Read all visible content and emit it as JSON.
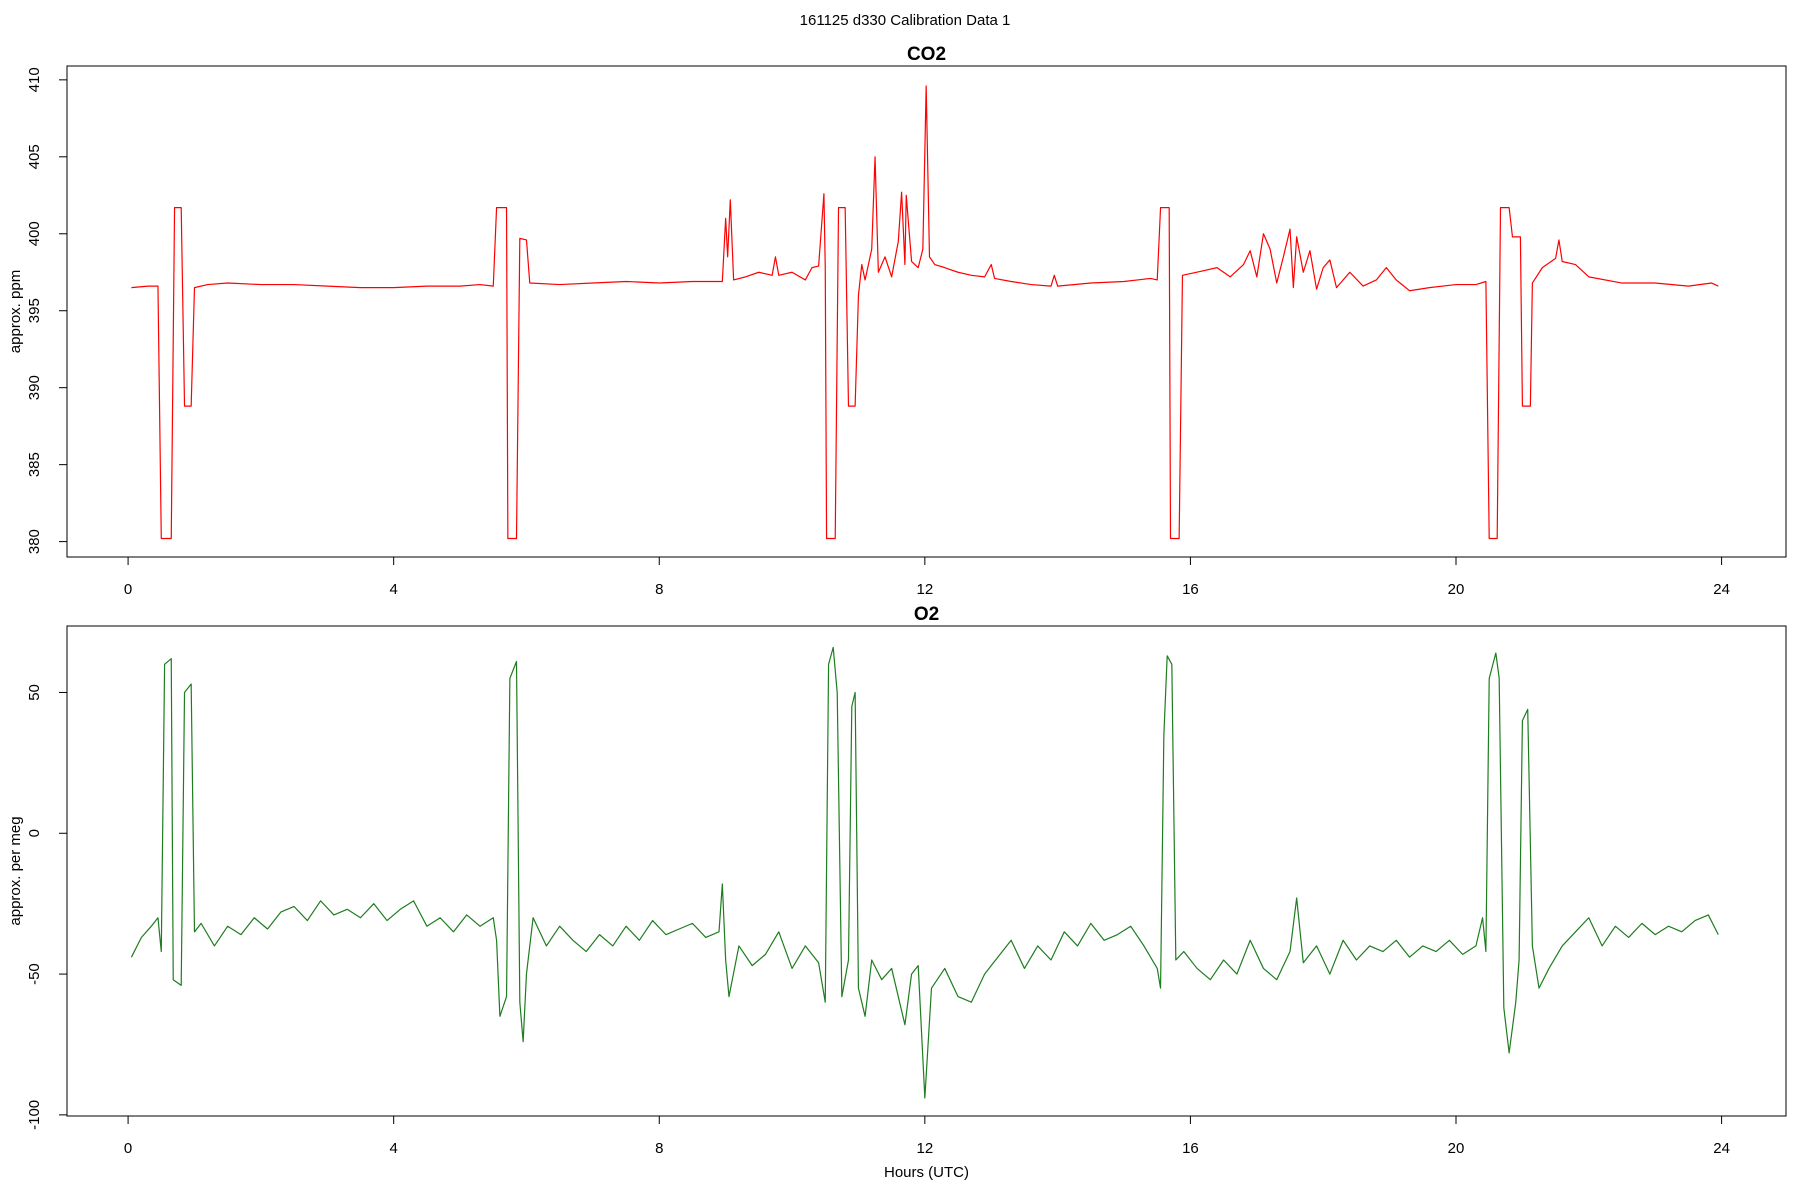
{
  "title": "161125   d330   Calibration Data 1",
  "chart_data": [
    {
      "type": "line",
      "title": "CO2",
      "ylabel": "approx. ppm",
      "x": [
        0.05,
        0.3,
        0.45,
        0.5,
        0.65,
        0.7,
        0.8,
        0.85,
        0.95,
        1.0,
        1.2,
        1.5,
        2,
        2.5,
        3,
        3.5,
        4,
        4.5,
        5,
        5.3,
        5.5,
        5.55,
        5.7,
        5.72,
        5.85,
        5.9,
        6.0,
        6.05,
        6.5,
        7,
        7.5,
        8,
        8.5,
        8.95,
        9.0,
        9.03,
        9.07,
        9.12,
        9.3,
        9.5,
        9.7,
        9.75,
        9.8,
        10,
        10.2,
        10.3,
        10.4,
        10.48,
        10.5,
        10.52,
        10.65,
        10.7,
        10.8,
        10.85,
        10.95,
        11.0,
        11.05,
        11.1,
        11.2,
        11.25,
        11.3,
        11.4,
        11.5,
        11.6,
        11.65,
        11.7,
        11.72,
        11.8,
        11.9,
        11.97,
        12.02,
        12.07,
        12.15,
        12.3,
        12.5,
        12.7,
        12.9,
        13.0,
        13.05,
        13.3,
        13.6,
        13.9,
        13.95,
        14.0,
        14.5,
        15,
        15.4,
        15.5,
        15.55,
        15.68,
        15.7,
        15.83,
        15.88,
        16.2,
        16.4,
        16.6,
        16.8,
        16.9,
        17.0,
        17.1,
        17.2,
        17.3,
        17.4,
        17.5,
        17.55,
        17.6,
        17.7,
        17.8,
        17.9,
        18.0,
        18.1,
        18.2,
        18.4,
        18.6,
        18.8,
        18.95,
        19.1,
        19.3,
        19.6,
        20,
        20.3,
        20.45,
        20.5,
        20.62,
        20.67,
        20.8,
        20.85,
        20.97,
        21.0,
        21.12,
        21.15,
        21.3,
        21.5,
        21.55,
        21.6,
        21.8,
        22,
        22.5,
        23,
        23.5,
        23.85,
        23.95
      ],
      "series": [
        {
          "color": "#ff0000",
          "values": [
            396.5,
            396.6,
            396.6,
            380.2,
            380.2,
            401.7,
            401.7,
            388.8,
            388.8,
            396.5,
            396.7,
            396.8,
            396.7,
            396.7,
            396.6,
            396.5,
            396.5,
            396.6,
            396.6,
            396.7,
            396.6,
            401.7,
            401.7,
            380.2,
            380.2,
            399.7,
            399.6,
            396.8,
            396.7,
            396.8,
            396.9,
            396.8,
            396.9,
            396.9,
            401.0,
            398.5,
            402.2,
            397.0,
            397.2,
            397.5,
            397.3,
            398.5,
            397.3,
            397.5,
            397.0,
            397.8,
            397.9,
            402.6,
            397.8,
            380.2,
            380.2,
            401.7,
            401.7,
            388.8,
            388.8,
            396.0,
            398.0,
            397.0,
            399.0,
            405.0,
            397.5,
            398.5,
            397.2,
            399.5,
            402.7,
            398.0,
            402.5,
            398.2,
            397.8,
            399.0,
            409.6,
            398.5,
            398.0,
            397.8,
            397.5,
            397.3,
            397.2,
            398.0,
            397.1,
            396.9,
            396.7,
            396.6,
            397.3,
            396.6,
            396.8,
            396.9,
            397.1,
            397.0,
            401.7,
            401.7,
            380.2,
            380.2,
            397.3,
            397.6,
            397.8,
            397.2,
            398.0,
            398.9,
            397.2,
            400.0,
            399.0,
            396.8,
            398.5,
            400.3,
            396.5,
            399.8,
            397.5,
            398.9,
            396.4,
            397.8,
            398.3,
            396.5,
            397.5,
            396.6,
            397.0,
            397.8,
            397.0,
            396.3,
            396.5,
            396.7,
            396.7,
            396.9,
            380.2,
            380.2,
            401.7,
            401.7,
            399.8,
            399.8,
            388.8,
            388.8,
            396.8,
            397.8,
            398.4,
            399.6,
            398.2,
            398.0,
            397.2,
            396.8,
            396.8,
            396.6,
            396.8,
            396.6
          ]
        }
      ],
      "xlim": [
        -0.92,
        24.97
      ],
      "ylim": [
        379,
        410.9
      ],
      "xticks": [
        0,
        4,
        8,
        12,
        16,
        20,
        24
      ],
      "yticks": [
        380,
        385,
        390,
        395,
        400,
        405,
        410
      ]
    },
    {
      "type": "line",
      "title": "O2",
      "xlabel": "Hours (UTC)",
      "ylabel": "approx. per meg",
      "x": [
        0.05,
        0.2,
        0.35,
        0.45,
        0.5,
        0.55,
        0.65,
        0.68,
        0.8,
        0.85,
        0.95,
        1.0,
        1.1,
        1.3,
        1.5,
        1.7,
        1.9,
        2.1,
        2.3,
        2.5,
        2.7,
        2.9,
        3.1,
        3.3,
        3.5,
        3.7,
        3.9,
        4.1,
        4.3,
        4.5,
        4.7,
        4.9,
        5.1,
        5.3,
        5.5,
        5.55,
        5.6,
        5.7,
        5.75,
        5.85,
        5.9,
        5.95,
        6.0,
        6.1,
        6.3,
        6.5,
        6.7,
        6.9,
        7.1,
        7.3,
        7.5,
        7.7,
        7.9,
        8.1,
        8.3,
        8.5,
        8.7,
        8.9,
        8.95,
        9.0,
        9.05,
        9.2,
        9.4,
        9.6,
        9.8,
        10.0,
        10.2,
        10.4,
        10.5,
        10.55,
        10.62,
        10.68,
        10.75,
        10.85,
        10.9,
        10.95,
        11.0,
        11.1,
        11.2,
        11.35,
        11.5,
        11.7,
        11.8,
        11.9,
        12.0,
        12.1,
        12.3,
        12.5,
        12.7,
        12.9,
        13.1,
        13.3,
        13.5,
        13.7,
        13.9,
        14.1,
        14.3,
        14.5,
        14.7,
        14.9,
        15.1,
        15.3,
        15.5,
        15.55,
        15.6,
        15.65,
        15.72,
        15.78,
        15.9,
        16.1,
        16.3,
        16.5,
        16.7,
        16.9,
        17.1,
        17.3,
        17.5,
        17.6,
        17.7,
        17.9,
        18.1,
        18.3,
        18.5,
        18.7,
        18.9,
        19.1,
        19.3,
        19.5,
        19.7,
        19.9,
        20.1,
        20.3,
        20.4,
        20.45,
        20.5,
        20.6,
        20.65,
        20.72,
        20.8,
        20.9,
        20.95,
        21.0,
        21.08,
        21.15,
        21.25,
        21.4,
        21.6,
        21.8,
        22.0,
        22.2,
        22.4,
        22.6,
        22.8,
        23.0,
        23.2,
        23.4,
        23.6,
        23.8,
        23.95
      ],
      "series": [
        {
          "color": "#1e7d1e",
          "values": [
            -44,
            -37,
            -33,
            -30,
            -42,
            60,
            62,
            -52,
            -54,
            50,
            53,
            -35,
            -32,
            -40,
            -33,
            -36,
            -30,
            -34,
            -28,
            -26,
            -31,
            -24,
            -29,
            -27,
            -30,
            -25,
            -31,
            -27,
            -24,
            -33,
            -30,
            -35,
            -29,
            -33,
            -30,
            -38,
            -65,
            -58,
            55,
            61,
            -60,
            -74,
            -50,
            -30,
            -40,
            -33,
            -38,
            -42,
            -36,
            -40,
            -33,
            -38,
            -31,
            -36,
            -34,
            -32,
            -37,
            -35,
            -18,
            -45,
            -58,
            -40,
            -47,
            -43,
            -35,
            -48,
            -40,
            -46,
            -60,
            60,
            66,
            50,
            -58,
            -45,
            45,
            50,
            -55,
            -65,
            -45,
            -52,
            -48,
            -68,
            -50,
            -47,
            -94,
            -55,
            -48,
            -58,
            -60,
            -50,
            -44,
            -38,
            -48,
            -40,
            -45,
            -35,
            -40,
            -32,
            -38,
            -36,
            -33,
            -40,
            -48,
            -55,
            35,
            63,
            60,
            -45,
            -42,
            -48,
            -52,
            -45,
            -50,
            -38,
            -48,
            -52,
            -42,
            -23,
            -46,
            -40,
            -50,
            -38,
            -45,
            -40,
            -42,
            -38,
            -44,
            -40,
            -42,
            -38,
            -43,
            -40,
            -30,
            -42,
            55,
            64,
            55,
            -62,
            -78,
            -60,
            -45,
            40,
            44,
            -40,
            -55,
            -48,
            -40,
            -35,
            -30,
            -40,
            -33,
            -37,
            -32,
            -36,
            -33,
            -35,
            -31,
            -29,
            -36
          ]
        }
      ],
      "xlim": [
        -0.92,
        24.97
      ],
      "ylim": [
        -100.4,
        73.6
      ],
      "xticks": [
        0,
        4,
        8,
        12,
        16,
        20,
        24
      ],
      "yticks": [
        -100,
        -50,
        0,
        50
      ]
    }
  ]
}
